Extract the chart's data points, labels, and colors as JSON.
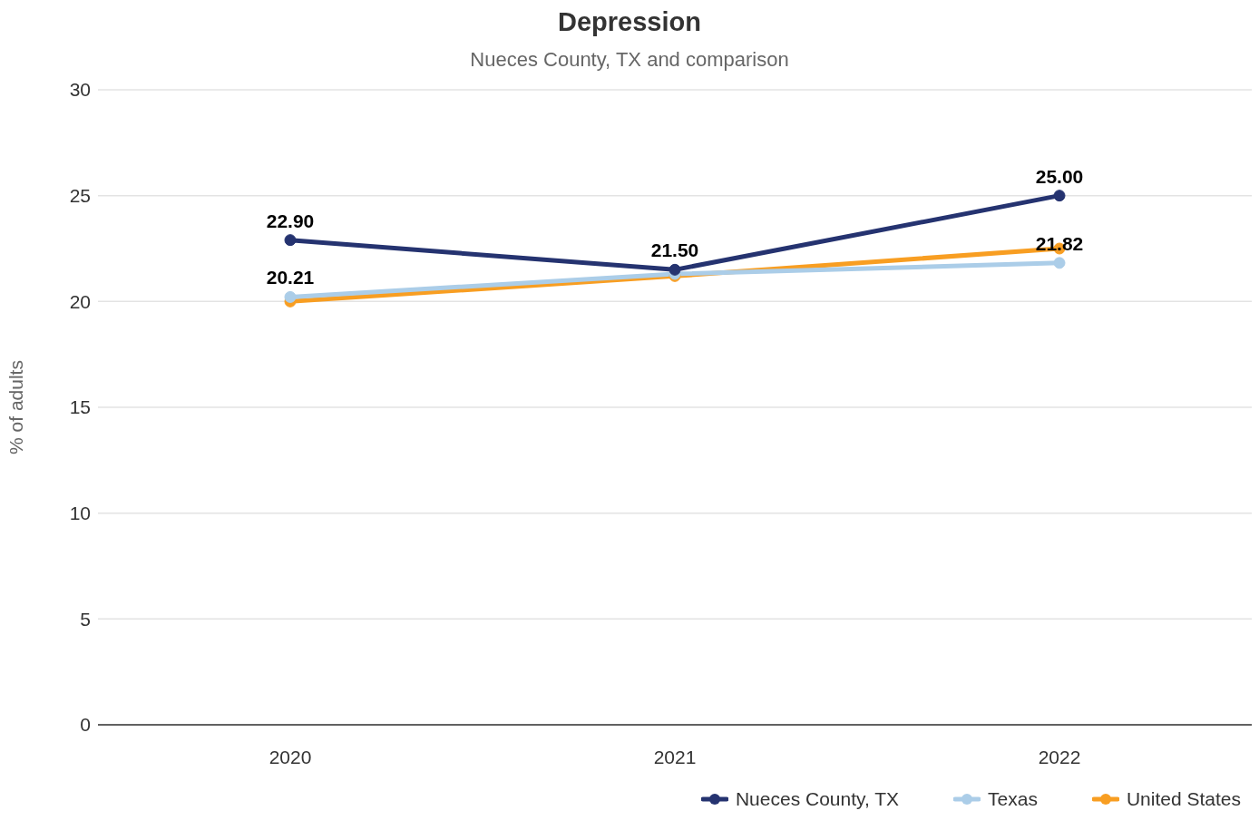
{
  "chart_data": {
    "type": "line",
    "title": "Depression",
    "subtitle": "Nueces County, TX and comparison",
    "ylabel": "% of adults",
    "categories": [
      "2020",
      "2021",
      "2022"
    ],
    "series": [
      {
        "name": "Nueces County, TX",
        "color": "#253370",
        "values": [
          22.9,
          21.5,
          25.0
        ],
        "value_labels": [
          "22.90",
          "21.50",
          "25.00"
        ]
      },
      {
        "name": "Texas",
        "color": "#abcde8",
        "values": [
          20.21,
          21.3,
          21.82
        ],
        "value_labels": [
          "20.21",
          null,
          "21.82"
        ]
      },
      {
        "name": "United States",
        "color": "#f89e22",
        "values": [
          20.0,
          21.2,
          22.5
        ],
        "value_labels": [
          null,
          null,
          null
        ]
      }
    ],
    "ylim": [
      0,
      30
    ],
    "yticks": [
      0,
      5,
      10,
      15,
      20,
      25,
      30
    ],
    "grid": "y",
    "legend": "bottom right",
    "marker": "circle",
    "line_style": "solid"
  }
}
